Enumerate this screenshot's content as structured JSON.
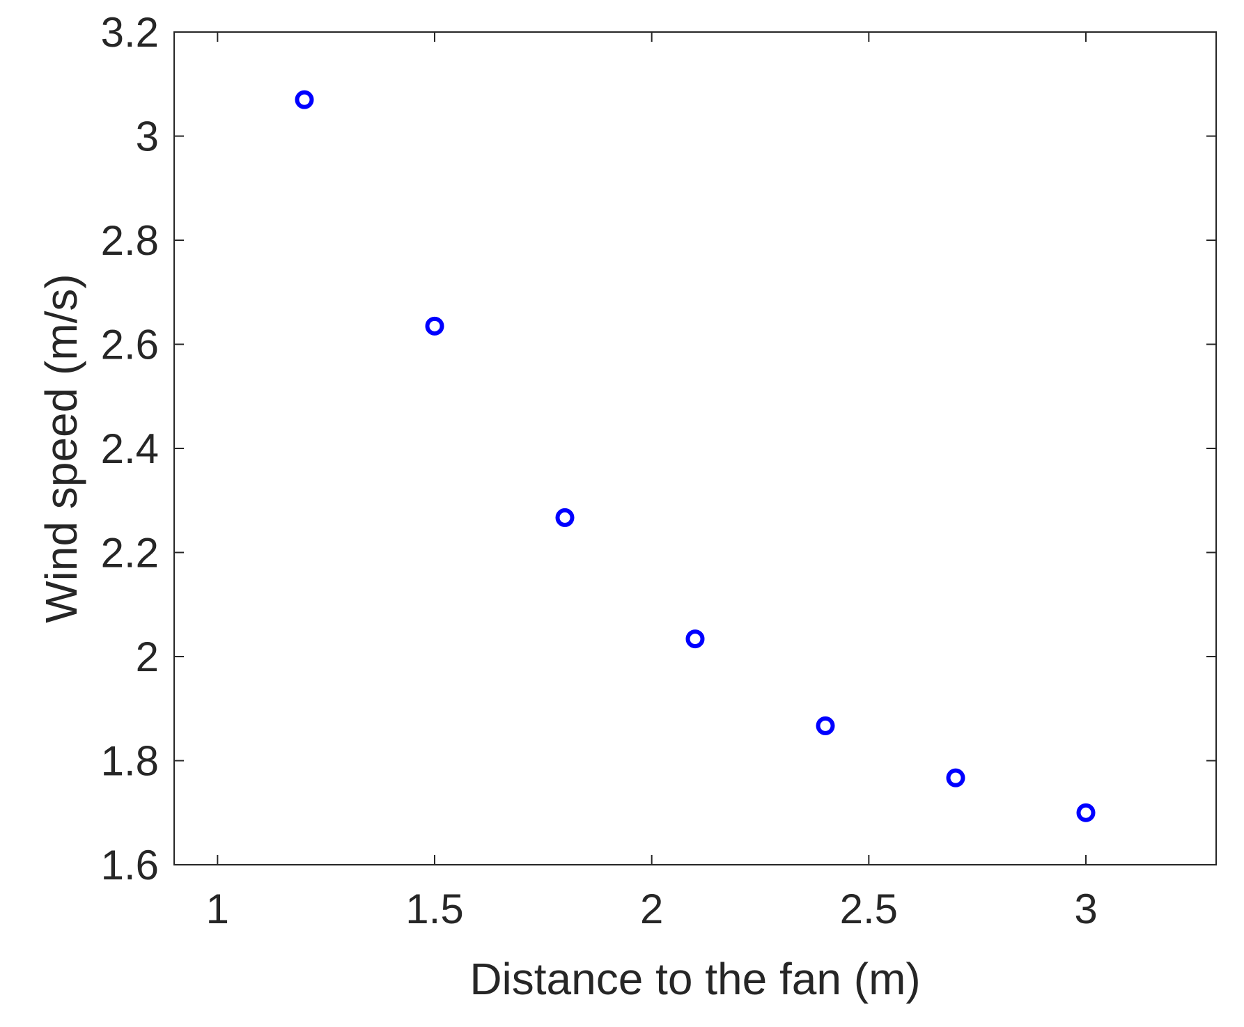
{
  "chart_data": {
    "type": "scatter",
    "title": "",
    "xlabel": "Distance to the fan (m)",
    "ylabel": "Wind speed (m/s)",
    "xlim": [
      0.9,
      3.3
    ],
    "ylim": [
      1.6,
      3.2
    ],
    "xticks": [
      1,
      1.5,
      2,
      2.5,
      3
    ],
    "yticks": [
      1.6,
      1.8,
      2,
      2.2,
      2.4,
      2.6,
      2.8,
      3,
      3.2
    ],
    "xtick_labels": [
      "1",
      "1.5",
      "2",
      "2.5",
      "3"
    ],
    "ytick_labels": [
      "1.6",
      "1.8",
      "2",
      "2.2",
      "2.4",
      "2.6",
      "2.8",
      "3",
      "3.2"
    ],
    "grid": false,
    "legend": false,
    "marker": "open-circle",
    "marker_color": "#0000ff",
    "axis_color": "#262626",
    "series": [
      {
        "x": [
          1.2,
          1.5,
          1.8,
          2.1,
          2.4,
          2.7,
          3.0
        ],
        "y": [
          3.07,
          2.635,
          2.267,
          2.034,
          1.867,
          1.767,
          1.7
        ]
      }
    ]
  }
}
